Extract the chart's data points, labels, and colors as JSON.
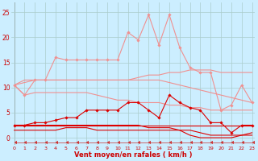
{
  "x": [
    0,
    1,
    2,
    3,
    4,
    5,
    6,
    7,
    8,
    9,
    10,
    11,
    12,
    13,
    14,
    15,
    16,
    17,
    18,
    19,
    20,
    21,
    22,
    23
  ],
  "background_color": "#cceeff",
  "grid_color": "#aacccc",
  "xlabel": "Vent moyen/en rafales ( km/h )",
  "ylim": [
    -1.5,
    27
  ],
  "xlim": [
    -0.3,
    23.3
  ],
  "yticks": [
    0,
    5,
    10,
    15,
    20,
    25
  ],
  "series": [
    {
      "name": "light_pink_peaked",
      "color": "#f09090",
      "linewidth": 0.8,
      "marker": "D",
      "markersize": 1.8,
      "data": [
        10.5,
        8.5,
        11.5,
        11.5,
        16.0,
        15.5,
        15.5,
        15.5,
        15.5,
        15.5,
        15.5,
        21.0,
        19.5,
        24.5,
        18.5,
        24.5,
        18.0,
        14.0,
        13.0,
        13.0,
        5.5,
        6.5,
        10.5,
        7.0
      ]
    },
    {
      "name": "light_pink_slope1",
      "color": "#f09090",
      "linewidth": 0.8,
      "marker": null,
      "markersize": 0,
      "data": [
        10.5,
        11.5,
        11.5,
        11.5,
        11.5,
        11.5,
        11.5,
        11.5,
        11.5,
        11.5,
        11.5,
        11.5,
        12.0,
        12.5,
        12.5,
        13.0,
        13.0,
        13.5,
        13.5,
        13.5,
        13.0,
        13.0,
        13.0,
        13.0
      ]
    },
    {
      "name": "light_pink_slope2",
      "color": "#f09090",
      "linewidth": 0.8,
      "marker": null,
      "markersize": 0,
      "data": [
        10.5,
        11.0,
        11.5,
        11.5,
        11.5,
        11.5,
        11.5,
        11.5,
        11.5,
        11.5,
        11.5,
        11.5,
        11.5,
        11.5,
        11.5,
        11.0,
        10.5,
        10.0,
        9.5,
        9.0,
        8.5,
        8.0,
        7.5,
        7.0
      ]
    },
    {
      "name": "light_pink_slope3",
      "color": "#f09090",
      "linewidth": 0.8,
      "marker": null,
      "markersize": 0,
      "data": [
        10.5,
        8.5,
        9.0,
        9.0,
        9.0,
        9.0,
        9.0,
        9.0,
        8.5,
        8.0,
        7.5,
        7.5,
        7.0,
        7.0,
        7.0,
        6.5,
        6.5,
        6.0,
        6.0,
        5.5,
        5.5,
        5.5,
        5.5,
        5.5
      ]
    },
    {
      "name": "light_pink_low_decreasing",
      "color": "#f09090",
      "linewidth": 0.8,
      "marker": null,
      "markersize": 0,
      "data": [
        2.5,
        2.5,
        2.5,
        2.5,
        2.5,
        2.5,
        2.5,
        2.5,
        2.5,
        2.5,
        2.5,
        2.5,
        2.5,
        2.5,
        2.5,
        2.5,
        2.5,
        2.5,
        2.5,
        2.5,
        2.5,
        2.5,
        2.5,
        2.5
      ]
    },
    {
      "name": "red_with_markers",
      "color": "#dd0000",
      "linewidth": 0.8,
      "marker": "D",
      "markersize": 1.8,
      "data": [
        2.5,
        2.5,
        3.0,
        3.0,
        3.5,
        4.0,
        4.0,
        5.5,
        5.5,
        5.5,
        5.5,
        7.0,
        7.0,
        5.5,
        4.0,
        8.5,
        7.0,
        6.0,
        5.5,
        3.0,
        3.0,
        1.0,
        2.5,
        2.5
      ]
    },
    {
      "name": "red_flat_top",
      "color": "#dd0000",
      "linewidth": 0.8,
      "marker": null,
      "markersize": 0,
      "data": [
        2.5,
        2.5,
        2.5,
        2.5,
        2.5,
        2.5,
        2.5,
        2.5,
        2.5,
        2.5,
        2.5,
        2.5,
        2.5,
        2.5,
        2.5,
        2.5,
        2.5,
        2.5,
        2.5,
        2.5,
        2.5,
        2.5,
        2.5,
        2.5
      ]
    },
    {
      "name": "red_slope_decreasing",
      "color": "#dd0000",
      "linewidth": 0.8,
      "marker": null,
      "markersize": 0,
      "data": [
        2.5,
        2.5,
        2.5,
        2.5,
        2.5,
        2.5,
        2.5,
        2.5,
        2.5,
        2.5,
        2.5,
        2.5,
        2.5,
        2.0,
        2.0,
        2.0,
        1.5,
        1.5,
        1.0,
        0.5,
        0.5,
        0.5,
        0.5,
        0.5
      ]
    },
    {
      "name": "red_very_low",
      "color": "#dd0000",
      "linewidth": 0.8,
      "marker": null,
      "markersize": 0,
      "data": [
        1.5,
        1.5,
        1.5,
        1.5,
        1.5,
        2.0,
        2.0,
        2.0,
        1.5,
        1.5,
        1.5,
        1.5,
        1.5,
        1.5,
        1.5,
        1.5,
        1.5,
        0.5,
        0.0,
        0.0,
        0.0,
        0.0,
        0.5,
        1.0
      ]
    },
    {
      "name": "arrows_row",
      "color": "#cc3333",
      "linewidth": 0.5,
      "marker": 4,
      "markersize": 2.5,
      "data": [
        -0.9,
        -0.9,
        -0.9,
        -0.9,
        -0.9,
        -0.9,
        -0.9,
        -0.9,
        -0.9,
        -0.9,
        -0.9,
        -0.9,
        -0.9,
        -0.9,
        -0.9,
        -0.9,
        -0.9,
        -0.9,
        -0.9,
        -0.9,
        -0.9,
        -0.9,
        -0.9,
        -0.9
      ]
    }
  ]
}
